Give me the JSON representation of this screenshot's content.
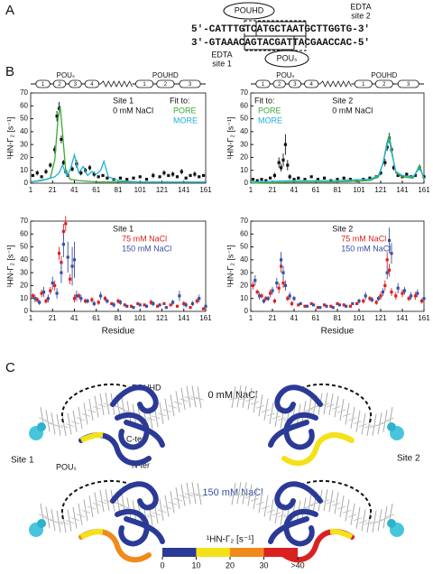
{
  "panel_a": {
    "label": "A",
    "seq_top": "5'-CATTTGTCATGCTAATGCTTGGTG-3'",
    "seq_bottom": "3'-GTAAACAGTACGATTACGAACCAC-5'",
    "pou_hd": "POUHD",
    "pou_s": "POUₛ",
    "edta_site2": [
      "EDTA",
      "site 2"
    ],
    "edta_site1": [
      "EDTA",
      "site 1"
    ]
  },
  "panel_b": {
    "label": "B",
    "domain_labels": [
      "POUₛ",
      "POUHD"
    ],
    "helix_labels": [
      "1",
      "2",
      "3",
      "4",
      "1",
      "2",
      "3"
    ]
  },
  "chart_data": [
    {
      "type": "scatter",
      "y_label": "¹HN-Γ₂ [s⁻¹]",
      "annotations": [
        "Site 1",
        "0 mM NaCl"
      ],
      "legend_title": "Fit to:",
      "legend": "top-right",
      "xlim": [
        1,
        161
      ],
      "xticks": [
        1,
        21,
        41,
        61,
        81,
        101,
        121,
        141,
        161
      ],
      "ylim": [
        0,
        70
      ],
      "yticks": [
        0,
        10,
        20,
        30,
        40,
        50,
        60,
        70
      ],
      "series": [
        {
          "color": "#111111",
          "x": [
            3,
            7,
            11,
            15,
            19,
            23,
            25,
            27,
            29,
            31,
            33,
            35,
            39,
            43,
            47,
            51,
            55,
            59,
            63,
            67,
            71,
            77,
            83,
            89,
            95,
            101,
            107,
            113,
            119,
            123,
            127,
            131,
            135,
            139,
            143,
            147,
            151,
            155,
            159
          ],
          "values": [
            6,
            8,
            5,
            9,
            14,
            26,
            52,
            58,
            34,
            16,
            9,
            6,
            11,
            15,
            8,
            10,
            12,
            7,
            5,
            6,
            4,
            3,
            4,
            3,
            4,
            5,
            3,
            6,
            5,
            8,
            6,
            7,
            5,
            9,
            4,
            6,
            7,
            5,
            6
          ],
          "errors": [
            1,
            2,
            1,
            2,
            2,
            3,
            4,
            5,
            3,
            2,
            2,
            1,
            2,
            3,
            2,
            2,
            2,
            2,
            1,
            1,
            1,
            1,
            1,
            1,
            1,
            1,
            1,
            2,
            1,
            2,
            1,
            2,
            1,
            2,
            1,
            1,
            2,
            1,
            1
          ]
        },
        {
          "name": "PORE",
          "color": "#3aa935",
          "x": [
            1,
            11,
            19,
            23,
            26,
            28,
            30,
            33,
            37,
            45,
            61,
            81,
            101,
            121,
            141,
            161
          ],
          "values": [
            1,
            2,
            4,
            18,
            50,
            60,
            40,
            10,
            3,
            2,
            1,
            1,
            1,
            1,
            1,
            1
          ]
        },
        {
          "name": "MORE",
          "color": "#1fb0d6",
          "x": [
            1,
            15,
            23,
            27,
            30,
            34,
            37,
            41,
            45,
            49,
            53,
            57,
            61,
            65,
            68,
            72,
            81,
            101,
            121,
            141,
            161
          ],
          "values": [
            1,
            3,
            5,
            8,
            14,
            6,
            10,
            22,
            8,
            13,
            6,
            9,
            7,
            10,
            17,
            5,
            2,
            1,
            1,
            1,
            1
          ]
        }
      ]
    },
    {
      "type": "scatter",
      "y_label": "¹HN-Γ₂ [s⁻¹]",
      "annotations": [
        "Site 2",
        "0 mM NaCl"
      ],
      "legend_title": "Fit to:",
      "legend": "top-left",
      "xlim": [
        1,
        161
      ],
      "xticks": [
        1,
        21,
        41,
        61,
        81,
        101,
        121,
        141,
        161
      ],
      "ylim": [
        0,
        70
      ],
      "yticks": [
        0,
        10,
        20,
        30,
        40,
        50,
        60,
        70
      ],
      "series": [
        {
          "color": "#111111",
          "x": [
            3,
            7,
            11,
            15,
            19,
            23,
            27,
            29,
            31,
            33,
            35,
            37,
            41,
            45,
            51,
            57,
            63,
            69,
            75,
            81,
            87,
            93,
            99,
            105,
            111,
            117,
            121,
            125,
            127,
            129,
            131,
            133,
            137,
            141,
            145,
            149,
            153,
            157,
            161
          ],
          "values": [
            3,
            2,
            3,
            2,
            4,
            6,
            16,
            12,
            18,
            30,
            14,
            5,
            3,
            4,
            3,
            5,
            3,
            4,
            2,
            3,
            4,
            3,
            2,
            3,
            4,
            5,
            8,
            16,
            28,
            35,
            26,
            12,
            6,
            5,
            7,
            5,
            6,
            12,
            5
          ],
          "errors": [
            1,
            1,
            1,
            1,
            1,
            2,
            4,
            3,
            5,
            8,
            4,
            2,
            1,
            1,
            1,
            1,
            1,
            1,
            1,
            1,
            1,
            1,
            1,
            1,
            1,
            1,
            2,
            3,
            3,
            4,
            3,
            2,
            1,
            1,
            1,
            1,
            1,
            2,
            1
          ]
        },
        {
          "name": "PORE",
          "color": "#3aa935",
          "x": [
            1,
            41,
            81,
            111,
            119,
            123,
            127,
            129,
            131,
            135,
            141,
            151,
            157,
            161
          ],
          "values": [
            0,
            1,
            1,
            2,
            5,
            15,
            32,
            37,
            26,
            8,
            5,
            4,
            14,
            3
          ]
        },
        {
          "name": "MORE",
          "color": "#1fb0d6",
          "x": [
            1,
            41,
            81,
            111,
            119,
            123,
            127,
            129,
            131,
            135,
            141,
            151,
            157,
            161
          ],
          "values": [
            1,
            2,
            2,
            3,
            6,
            15,
            30,
            34,
            24,
            9,
            6,
            5,
            12,
            4
          ]
        }
      ]
    },
    {
      "type": "scatter",
      "y_label": "¹HN-Γ₂ [s⁻¹]",
      "x_label": "Residue",
      "annotations": [
        "Site 1"
      ],
      "legend": "top",
      "xlim": [
        1,
        161
      ],
      "xticks": [
        1,
        21,
        41,
        61,
        81,
        101,
        121,
        141,
        161
      ],
      "ylim": [
        0,
        70
      ],
      "yticks": [
        0,
        10,
        20,
        30,
        40,
        50,
        60,
        70
      ],
      "series": [
        {
          "name": "75 mM NaCl",
          "color": "#e0201b",
          "x": [
            3,
            7,
            11,
            15,
            19,
            23,
            27,
            29,
            31,
            33,
            37,
            41,
            45,
            51,
            57,
            63,
            69,
            75,
            81,
            87,
            93,
            99,
            105,
            111,
            117,
            123,
            129,
            135,
            141,
            147,
            153,
            159
          ],
          "values": [
            12,
            9,
            14,
            8,
            16,
            20,
            45,
            38,
            62,
            68,
            25,
            10,
            12,
            8,
            9,
            7,
            10,
            6,
            8,
            5,
            4,
            6,
            5,
            7,
            4,
            6,
            5,
            4,
            6,
            3,
            8,
            2
          ],
          "errors": [
            2,
            2,
            3,
            2,
            3,
            4,
            5,
            5,
            6,
            6,
            4,
            3,
            2,
            2,
            2,
            2,
            2,
            1,
            2,
            1,
            1,
            1,
            1,
            2,
            1,
            1,
            1,
            1,
            2,
            1,
            2,
            1
          ]
        },
        {
          "name": "150 mM NaCl",
          "color": "#3a4fa3",
          "x": [
            5,
            9,
            13,
            17,
            21,
            25,
            29,
            31,
            35,
            39,
            41,
            43,
            47,
            53,
            59,
            65,
            71,
            77,
            83,
            89,
            95,
            101,
            107,
            113,
            119,
            125,
            131,
            137,
            143,
            149,
            155,
            161
          ],
          "values": [
            10,
            7,
            15,
            10,
            22,
            14,
            30,
            52,
            42,
            35,
            40,
            12,
            10,
            8,
            6,
            12,
            8,
            5,
            7,
            4,
            3,
            5,
            4,
            6,
            5,
            3,
            7,
            12,
            5,
            6,
            10,
            4
          ],
          "errors": [
            3,
            2,
            4,
            3,
            5,
            4,
            8,
            10,
            12,
            15,
            14,
            4,
            3,
            2,
            2,
            3,
            2,
            2,
            2,
            1,
            1,
            1,
            1,
            2,
            1,
            1,
            2,
            4,
            2,
            2,
            3,
            1
          ]
        }
      ]
    },
    {
      "type": "scatter",
      "y_label": "¹HN-Γ₂ [s⁻¹]",
      "x_label": "Residue",
      "annotations": [
        "Site 2"
      ],
      "legend": "top",
      "xlim": [
        1,
        161
      ],
      "xticks": [
        1,
        21,
        41,
        61,
        81,
        101,
        121,
        141,
        161
      ],
      "ylim": [
        0,
        70
      ],
      "yticks": [
        0,
        10,
        20,
        30,
        40,
        50,
        60,
        70
      ],
      "series": [
        {
          "name": "75 mM NaCl",
          "color": "#e0201b",
          "x": [
            3,
            7,
            11,
            15,
            19,
            23,
            27,
            29,
            31,
            35,
            39,
            45,
            51,
            57,
            63,
            69,
            75,
            81,
            87,
            93,
            99,
            105,
            111,
            117,
            121,
            125,
            127,
            129,
            131,
            135,
            141,
            147,
            153,
            159
          ],
          "values": [
            20,
            15,
            12,
            10,
            14,
            8,
            18,
            35,
            22,
            10,
            6,
            5,
            4,
            6,
            3,
            5,
            4,
            6,
            5,
            4,
            6,
            8,
            10,
            7,
            12,
            20,
            40,
            32,
            15,
            12,
            14,
            10,
            12,
            8
          ],
          "errors": [
            3,
            2,
            2,
            2,
            3,
            2,
            4,
            5,
            4,
            2,
            2,
            1,
            1,
            1,
            1,
            1,
            1,
            1,
            1,
            1,
            1,
            2,
            2,
            2,
            3,
            4,
            6,
            5,
            3,
            3,
            3,
            2,
            3,
            2
          ]
        },
        {
          "name": "150 mM NaCl",
          "color": "#3a4fa3",
          "x": [
            5,
            9,
            13,
            17,
            21,
            25,
            29,
            31,
            33,
            37,
            41,
            47,
            53,
            59,
            65,
            71,
            77,
            83,
            89,
            95,
            101,
            107,
            113,
            119,
            123,
            127,
            129,
            131,
            137,
            143,
            149,
            155,
            161
          ],
          "values": [
            24,
            12,
            8,
            10,
            16,
            22,
            40,
            30,
            20,
            12,
            10,
            6,
            4,
            5,
            3,
            4,
            3,
            5,
            4,
            6,
            8,
            12,
            9,
            10,
            15,
            30,
            55,
            45,
            18,
            16,
            12,
            14,
            10
          ],
          "errors": [
            4,
            3,
            2,
            2,
            3,
            4,
            6,
            5,
            4,
            3,
            2,
            1,
            1,
            1,
            1,
            1,
            1,
            1,
            1,
            1,
            2,
            3,
            2,
            2,
            3,
            5,
            10,
            8,
            4,
            3,
            3,
            3,
            2
          ]
        }
      ]
    }
  ],
  "panel_c": {
    "label": "C",
    "condition_top": "0 mM NaCl",
    "condition_bottom": "150 mM NaCl",
    "site1": "Site 1",
    "site2": "Site 2",
    "pou_hd": "POUHD",
    "pou_s": "POUₛ",
    "c_ter": "C-ter",
    "n_ter": "N-ter",
    "colorbar": {
      "label": "¹HN-Γ₂ [s⁻¹]",
      "ticks": [
        0,
        10,
        20,
        30,
        {
          "value": 40,
          "label": ">40"
        }
      ],
      "colors": [
        "#2b3a97",
        "#f5e11a",
        "#f08a1c",
        "#d9221f"
      ]
    }
  }
}
